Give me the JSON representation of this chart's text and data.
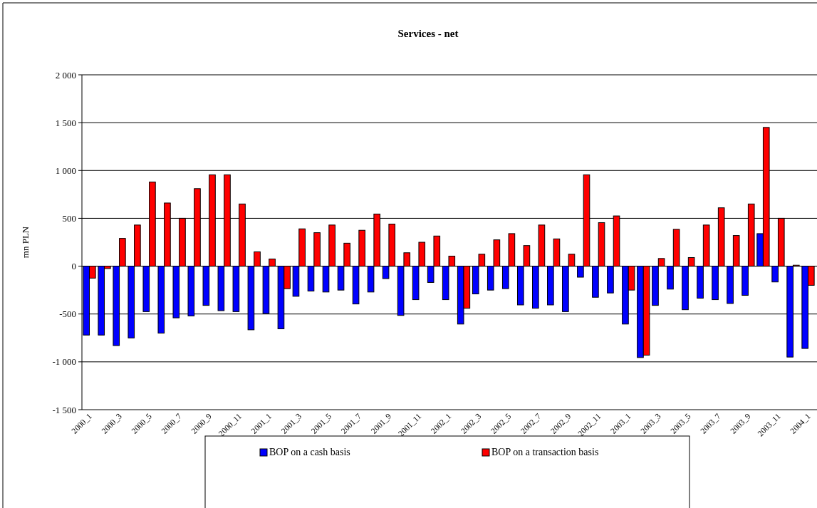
{
  "chart_data": {
    "type": "bar",
    "title": "Services - net",
    "ylabel": "mn PLN",
    "categories": [
      "2000_1",
      null,
      "2000_3",
      null,
      "2000_5",
      null,
      "2000_7",
      null,
      "2000_9",
      null,
      "2000_11",
      null,
      "2001_1",
      null,
      "2001_3",
      null,
      "2001_5",
      null,
      "2001_7",
      null,
      "2001_9",
      null,
      "2001_11",
      null,
      "2002_1",
      null,
      "2002_3",
      null,
      "2002_5",
      null,
      "2002_7",
      null,
      "2002_9",
      null,
      "2002_11",
      null,
      "2003_1",
      null,
      "2003_3",
      null,
      "2003_5",
      null,
      "2003_7",
      null,
      "2003_9",
      null,
      "2003_11",
      null,
      "2004_1"
    ],
    "series": [
      {
        "name": "BOP on a cash basis",
        "color": "#0000ff",
        "values": [
          -720,
          -720,
          -830,
          -750,
          -475,
          -700,
          -540,
          -520,
          -410,
          -465,
          -475,
          -665,
          -495,
          -655,
          -315,
          -260,
          -270,
          -250,
          -395,
          -270,
          -130,
          -515,
          -350,
          -170,
          -350,
          -605,
          -290,
          -250,
          -235,
          -405,
          -440,
          -405,
          -475,
          -115,
          -325,
          -280,
          -605,
          -955,
          -410,
          -240,
          -455,
          -335,
          -350,
          -390,
          -305,
          340,
          -165,
          -950,
          -860
        ]
      },
      {
        "name": "BOP on a transaction basis",
        "color": "#ff0000",
        "values": [
          -125,
          -25,
          290,
          430,
          880,
          660,
          500,
          810,
          955,
          955,
          650,
          150,
          75,
          -235,
          390,
          350,
          430,
          240,
          375,
          545,
          440,
          140,
          250,
          315,
          105,
          -440,
          125,
          275,
          340,
          215,
          430,
          285,
          125,
          955,
          455,
          525,
          -250,
          -930,
          80,
          385,
          90,
          430,
          610,
          320,
          650,
          1450,
          500,
          10,
          -200
        ]
      }
    ],
    "ylim": [
      -1500,
      2000
    ],
    "yticks": [
      {
        "value": -1500,
        "label": "-1 500"
      },
      {
        "value": -1000,
        "label": "-1 000"
      },
      {
        "value": -500,
        "label": "-500"
      },
      0,
      {
        "value": 500,
        "label": "500"
      },
      {
        "value": 1000,
        "label": "1 000"
      },
      {
        "value": 1500,
        "label": "1 500"
      },
      {
        "value": 2000,
        "label": "2 000"
      }
    ],
    "grid": "y",
    "legend": "bottom"
  }
}
